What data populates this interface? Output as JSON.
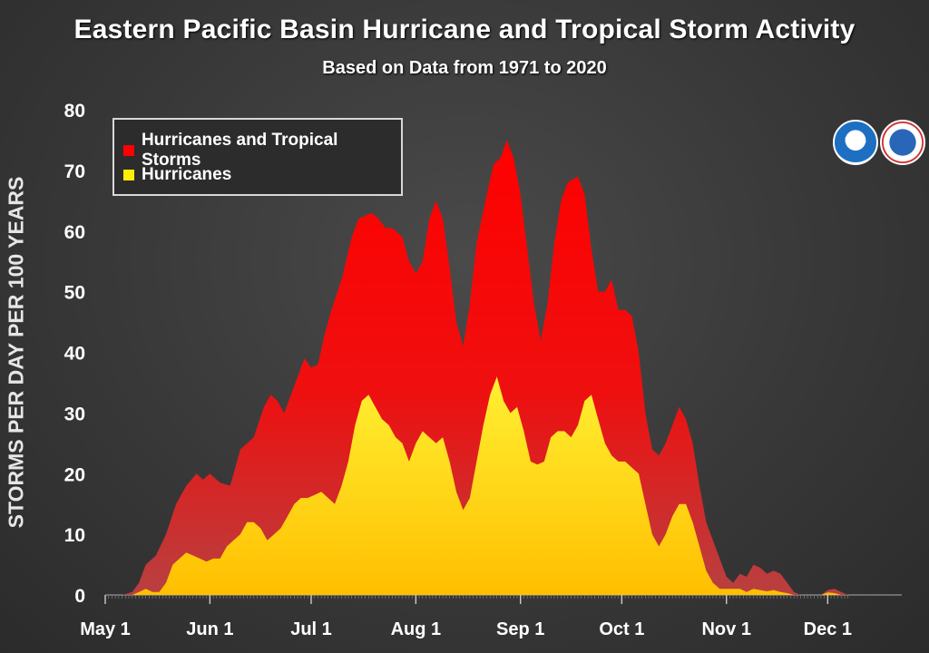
{
  "chart_data": {
    "type": "area",
    "title": "Eastern Pacific Basin Hurricane and Tropical Storm Activity",
    "subtitle": "Based on Data from 1971 to 2020",
    "xlabel": "",
    "ylabel": "STORMS PER DAY PER 100 YEARS",
    "ylim": [
      0,
      80
    ],
    "xlim": [
      0,
      244
    ],
    "yticks": [
      0,
      10,
      20,
      30,
      40,
      50,
      60,
      70,
      80
    ],
    "xticks": [
      {
        "label": "May 1",
        "day": 0
      },
      {
        "label": "Jun 1",
        "day": 31
      },
      {
        "label": "Jul 1",
        "day": 61
      },
      {
        "label": "Aug 1",
        "day": 92
      },
      {
        "label": "Sep 1",
        "day": 123
      },
      {
        "label": "Oct 1",
        "day": 153
      },
      {
        "label": "Nov 1",
        "day": 184
      },
      {
        "label": "Dec 1",
        "day": 214
      }
    ],
    "legend_position": "top-left",
    "series": [
      {
        "name": "Hurricanes and Tropical Storms",
        "color": "#ff0000",
        "points": [
          [
            0,
            0
          ],
          [
            5,
            0
          ],
          [
            8,
            0.5
          ],
          [
            10,
            2
          ],
          [
            12,
            5
          ],
          [
            15,
            6.5
          ],
          [
            18,
            10
          ],
          [
            21,
            15
          ],
          [
            24,
            18
          ],
          [
            27,
            20
          ],
          [
            29,
            19
          ],
          [
            31,
            20
          ],
          [
            34,
            18.5
          ],
          [
            37,
            18
          ],
          [
            40,
            24
          ],
          [
            44,
            26
          ],
          [
            47,
            31
          ],
          [
            49,
            33
          ],
          [
            51,
            32
          ],
          [
            53,
            30
          ],
          [
            55,
            33
          ],
          [
            57,
            36
          ],
          [
            59,
            39
          ],
          [
            61,
            37.5
          ],
          [
            63,
            38
          ],
          [
            65,
            43
          ],
          [
            67,
            47
          ],
          [
            70,
            52
          ],
          [
            73,
            59
          ],
          [
            75,
            62
          ],
          [
            77,
            62.5
          ],
          [
            79,
            63
          ],
          [
            81,
            62
          ],
          [
            83,
            60.5
          ],
          [
            85,
            60.5
          ],
          [
            88,
            59
          ],
          [
            90,
            55
          ],
          [
            92,
            53
          ],
          [
            94,
            55
          ],
          [
            96,
            62
          ],
          [
            98,
            65
          ],
          [
            100,
            62
          ],
          [
            102,
            54
          ],
          [
            104,
            45
          ],
          [
            106,
            41
          ],
          [
            108,
            48
          ],
          [
            110,
            58
          ],
          [
            113,
            66
          ],
          [
            115,
            71
          ],
          [
            117,
            72
          ],
          [
            119,
            75
          ],
          [
            121,
            72
          ],
          [
            123,
            66
          ],
          [
            125,
            57
          ],
          [
            127,
            48
          ],
          [
            129,
            42
          ],
          [
            131,
            48
          ],
          [
            133,
            58
          ],
          [
            135,
            65
          ],
          [
            137,
            68
          ],
          [
            140,
            69
          ],
          [
            142,
            66
          ],
          [
            144,
            57
          ],
          [
            146,
            50
          ],
          [
            148,
            50
          ],
          [
            150,
            52
          ],
          [
            152,
            47
          ],
          [
            154,
            47
          ],
          [
            156,
            46
          ],
          [
            158,
            40
          ],
          [
            160,
            30
          ],
          [
            162,
            24
          ],
          [
            164,
            23
          ],
          [
            166,
            25
          ],
          [
            168,
            28
          ],
          [
            170,
            31
          ],
          [
            172,
            29
          ],
          [
            174,
            25
          ],
          [
            176,
            18
          ],
          [
            178,
            12
          ],
          [
            180,
            9
          ],
          [
            182,
            6
          ],
          [
            184,
            3
          ],
          [
            186,
            2
          ],
          [
            188,
            3.5
          ],
          [
            190,
            3
          ],
          [
            192,
            5
          ],
          [
            194,
            4.5
          ],
          [
            196,
            3.5
          ],
          [
            198,
            4
          ],
          [
            200,
            3.5
          ],
          [
            202,
            2
          ],
          [
            204,
            0.5
          ],
          [
            206,
            0
          ],
          [
            212,
            0
          ],
          [
            214,
            0.8
          ],
          [
            216,
            1
          ],
          [
            218,
            0.5
          ],
          [
            220,
            0
          ],
          [
            244,
            0
          ]
        ]
      },
      {
        "name": "Hurricanes",
        "color": "#ffee00",
        "points": [
          [
            0,
            0
          ],
          [
            8,
            0
          ],
          [
            10,
            0.5
          ],
          [
            12,
            1
          ],
          [
            14,
            0.5
          ],
          [
            16,
            0.5
          ],
          [
            18,
            2
          ],
          [
            20,
            5
          ],
          [
            22,
            6
          ],
          [
            24,
            7
          ],
          [
            26,
            6.5
          ],
          [
            28,
            6
          ],
          [
            30,
            5.5
          ],
          [
            32,
            6
          ],
          [
            34,
            6
          ],
          [
            36,
            8
          ],
          [
            38,
            9
          ],
          [
            40,
            10
          ],
          [
            42,
            12
          ],
          [
            44,
            12
          ],
          [
            46,
            11
          ],
          [
            48,
            9
          ],
          [
            50,
            10
          ],
          [
            52,
            11
          ],
          [
            54,
            13
          ],
          [
            56,
            15
          ],
          [
            58,
            16
          ],
          [
            60,
            16
          ],
          [
            62,
            16.5
          ],
          [
            64,
            17
          ],
          [
            66,
            16
          ],
          [
            68,
            15
          ],
          [
            70,
            18
          ],
          [
            72,
            22
          ],
          [
            74,
            28
          ],
          [
            76,
            32
          ],
          [
            78,
            33
          ],
          [
            80,
            31
          ],
          [
            82,
            29
          ],
          [
            84,
            28
          ],
          [
            86,
            26
          ],
          [
            88,
            25
          ],
          [
            90,
            22
          ],
          [
            92,
            25
          ],
          [
            94,
            27
          ],
          [
            96,
            26
          ],
          [
            98,
            25
          ],
          [
            100,
            26
          ],
          [
            102,
            22
          ],
          [
            104,
            17
          ],
          [
            106,
            14
          ],
          [
            108,
            16
          ],
          [
            110,
            22
          ],
          [
            112,
            28
          ],
          [
            114,
            33
          ],
          [
            116,
            36
          ],
          [
            118,
            32
          ],
          [
            120,
            30
          ],
          [
            122,
            31
          ],
          [
            124,
            27
          ],
          [
            126,
            22
          ],
          [
            128,
            21.5
          ],
          [
            130,
            22
          ],
          [
            132,
            26
          ],
          [
            134,
            27
          ],
          [
            136,
            27
          ],
          [
            138,
            26
          ],
          [
            140,
            28
          ],
          [
            142,
            32
          ],
          [
            144,
            33
          ],
          [
            146,
            29
          ],
          [
            148,
            25
          ],
          [
            150,
            23
          ],
          [
            152,
            22
          ],
          [
            154,
            22
          ],
          [
            156,
            21
          ],
          [
            158,
            20
          ],
          [
            160,
            15
          ],
          [
            162,
            10
          ],
          [
            164,
            8
          ],
          [
            166,
            10
          ],
          [
            168,
            13
          ],
          [
            170,
            15
          ],
          [
            172,
            15
          ],
          [
            174,
            12
          ],
          [
            176,
            8
          ],
          [
            178,
            4
          ],
          [
            180,
            2
          ],
          [
            182,
            1
          ],
          [
            184,
            1
          ],
          [
            186,
            1
          ],
          [
            188,
            1
          ],
          [
            190,
            0.5
          ],
          [
            192,
            1
          ],
          [
            194,
            0.8
          ],
          [
            196,
            0.6
          ],
          [
            198,
            0.8
          ],
          [
            200,
            0.5
          ],
          [
            202,
            0.3
          ],
          [
            204,
            0
          ],
          [
            212,
            0
          ],
          [
            214,
            0.4
          ],
          [
            216,
            0.3
          ],
          [
            218,
            0
          ],
          [
            244,
            0
          ]
        ]
      }
    ]
  },
  "logos": {
    "noaa": "NOAA",
    "nws": "NATIONAL WEATHER SERVICE"
  }
}
